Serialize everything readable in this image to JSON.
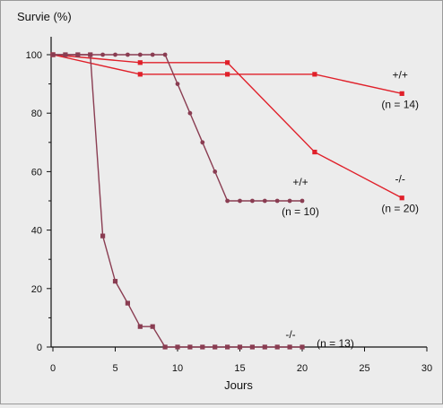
{
  "chart_data": {
    "type": "line",
    "ylabel": "Survie (%)",
    "xlabel": "Jours",
    "xlim": [
      0,
      30
    ],
    "ylim": [
      0,
      100
    ],
    "xticks": [
      0,
      5,
      10,
      15,
      20,
      25,
      30
    ],
    "yticks": [
      0,
      20,
      40,
      60,
      80,
      100
    ],
    "grid": false,
    "series": [
      {
        "name": "+/+ (n = 14)",
        "color": "#e0202a",
        "marker": "square",
        "x": [
          0,
          7,
          14,
          21,
          28
        ],
        "y": [
          100,
          93.3,
          93.3,
          93.3,
          86.7
        ]
      },
      {
        "name": "-/- (n = 20)",
        "color": "#e0202a",
        "marker": "square",
        "x": [
          0,
          7,
          14,
          21,
          28
        ],
        "y": [
          100,
          97.3,
          97.3,
          66.7,
          51
        ]
      },
      {
        "name": "+/+ (n = 10)",
        "color": "#8a3d52",
        "marker": "circle",
        "x": [
          0,
          1,
          2,
          3,
          4,
          5,
          6,
          7,
          8,
          9,
          10,
          11,
          12,
          13,
          14,
          15,
          16,
          17,
          18,
          19,
          20
        ],
        "y": [
          100,
          100,
          100,
          100,
          100,
          100,
          100,
          100,
          100,
          100,
          90,
          80,
          70,
          60,
          50,
          50,
          50,
          50,
          50,
          50,
          50
        ]
      },
      {
        "name": "-/- (n = 13)",
        "color": "#8a3d52",
        "marker": "square",
        "x": [
          0,
          1,
          2,
          3,
          4,
          5,
          6,
          7,
          8,
          9,
          10,
          11,
          12,
          13,
          14,
          15,
          16,
          17,
          18,
          19,
          20
        ],
        "y": [
          100,
          100,
          100,
          100,
          38,
          22.5,
          15,
          7,
          7,
          0,
          0,
          0,
          0,
          0,
          0,
          0,
          0,
          0,
          0,
          0,
          0
        ]
      }
    ],
    "annotations": [
      {
        "genotype": "+/+",
        "n": "(n = 14)",
        "x": 28,
        "y": 86.7,
        "color": "#e0202a"
      },
      {
        "genotype": "-/-",
        "n": "(n = 20)",
        "x": 28,
        "y": 51,
        "color": "#e0202a"
      },
      {
        "genotype": "+/+",
        "n": "(n = 10)",
        "x": 20,
        "y": 50,
        "color": "#8a3d52"
      },
      {
        "genotype": "-/-",
        "n": "(n = 13)",
        "x": 20,
        "y": 0,
        "color": "#8a3d52"
      }
    ]
  }
}
